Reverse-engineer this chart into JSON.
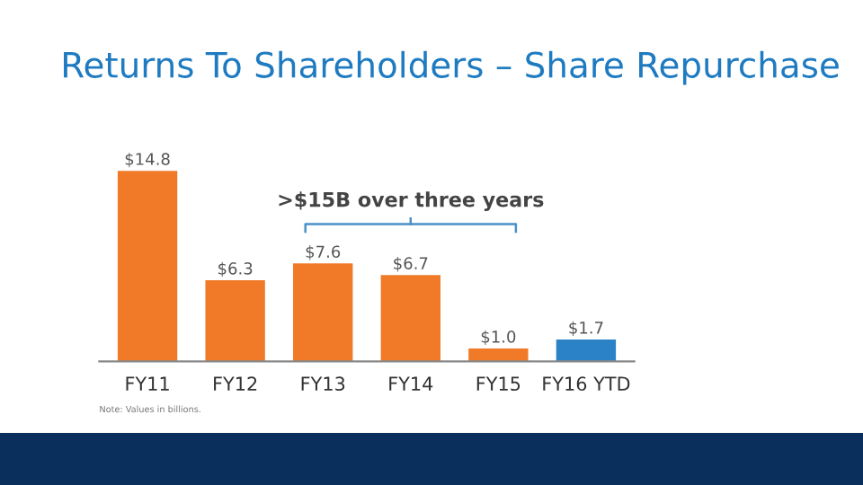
{
  "chart_data": {
    "type": "bar",
    "title": "Returns To Shareholders – Share Repurchase",
    "categories": [
      "FY11",
      "FY12",
      "FY13",
      "FY14",
      "FY15",
      "FY16 YTD"
    ],
    "values": [
      14.8,
      6.3,
      7.6,
      6.7,
      1.0,
      1.7
    ],
    "colors": [
      "#f07a28",
      "#f07a28",
      "#f07a28",
      "#f07a28",
      "#f07a28",
      "#2b82c6"
    ],
    "value_labels": [
      "$14.8",
      "$6.3",
      "$7.6",
      "$6.7",
      "$1.0",
      "$1.7"
    ],
    "relative": false,
    "annotations": [
      ">$15B over three years",
      "Note: Values in billions."
    ]
  }
}
